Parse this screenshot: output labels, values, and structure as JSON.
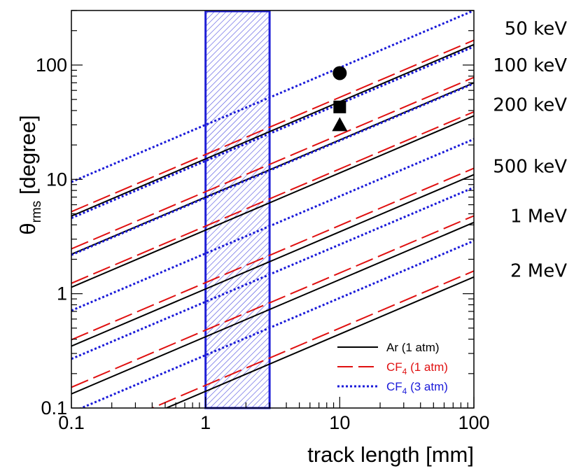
{
  "chart_data": {
    "type": "line",
    "xlabel": "track length [mm]",
    "ylabel_main": "θ",
    "ylabel_sub": "rms",
    "ylabel_unit": " [degree]",
    "x_scale": "log",
    "y_scale": "log",
    "xlim": [
      0.1,
      100
    ],
    "ylim": [
      0.1,
      300
    ],
    "x_ticks": [
      {
        "value": 0.1,
        "label": "0.1"
      },
      {
        "value": 1,
        "label": "1"
      },
      {
        "value": 10,
        "label": "10"
      },
      {
        "value": 100,
        "label": "100"
      }
    ],
    "y_ticks": [
      {
        "value": 0.1,
        "label": "0.1"
      },
      {
        "value": 1,
        "label": "1"
      },
      {
        "value": 10,
        "label": "10"
      },
      {
        "value": 100,
        "label": "100"
      }
    ],
    "shaded_band": {
      "x_range": [
        1,
        3
      ],
      "color": "#1f1fd6"
    },
    "energy_labels": [
      {
        "label": "50 keV",
        "y": 210
      },
      {
        "label": "100 keV",
        "y": 100
      },
      {
        "label": "200 keV",
        "y": 45
      },
      {
        "label": "500 keV",
        "y": 13
      },
      {
        "label": "1 MeV",
        "y": 4.8
      },
      {
        "label": "2 MeV",
        "y": 1.6
      }
    ],
    "series": [
      {
        "name": "Ar (1 atm)",
        "gas": "Ar",
        "sub": "",
        "pressure": " (1 atm)",
        "style": "solid",
        "color": "#000000",
        "slope": 0.5,
        "intercepts_at_x1": [
          15.1,
          7.0,
          3.6,
          1.1,
          0.42,
          0.14
        ]
      },
      {
        "name": "CF4 (1 atm)",
        "gas": "CF",
        "sub": "4",
        "pressure": " (1 atm)",
        "style": "dashed",
        "color": "#e01010",
        "slope": 0.5,
        "intercepts_at_x1": [
          16.5,
          7.8,
          3.9,
          1.25,
          0.48,
          0.158
        ]
      },
      {
        "name": "CF4 (3 atm)",
        "gas": "CF",
        "sub": "4",
        "pressure": " (3 atm)",
        "style": "dotted",
        "color": "#1a1ad9",
        "slope": 0.5,
        "intercepts_at_x1": [
          30.0,
          14.5,
          6.9,
          2.25,
          0.85,
          0.29
        ]
      }
    ],
    "points": [
      {
        "marker": "circle",
        "x": 10,
        "y": 85
      },
      {
        "marker": "square",
        "x": 10,
        "y": 43
      },
      {
        "marker": "triangle",
        "x": 10,
        "y": 30
      }
    ],
    "legend_position": "bottom-right"
  }
}
